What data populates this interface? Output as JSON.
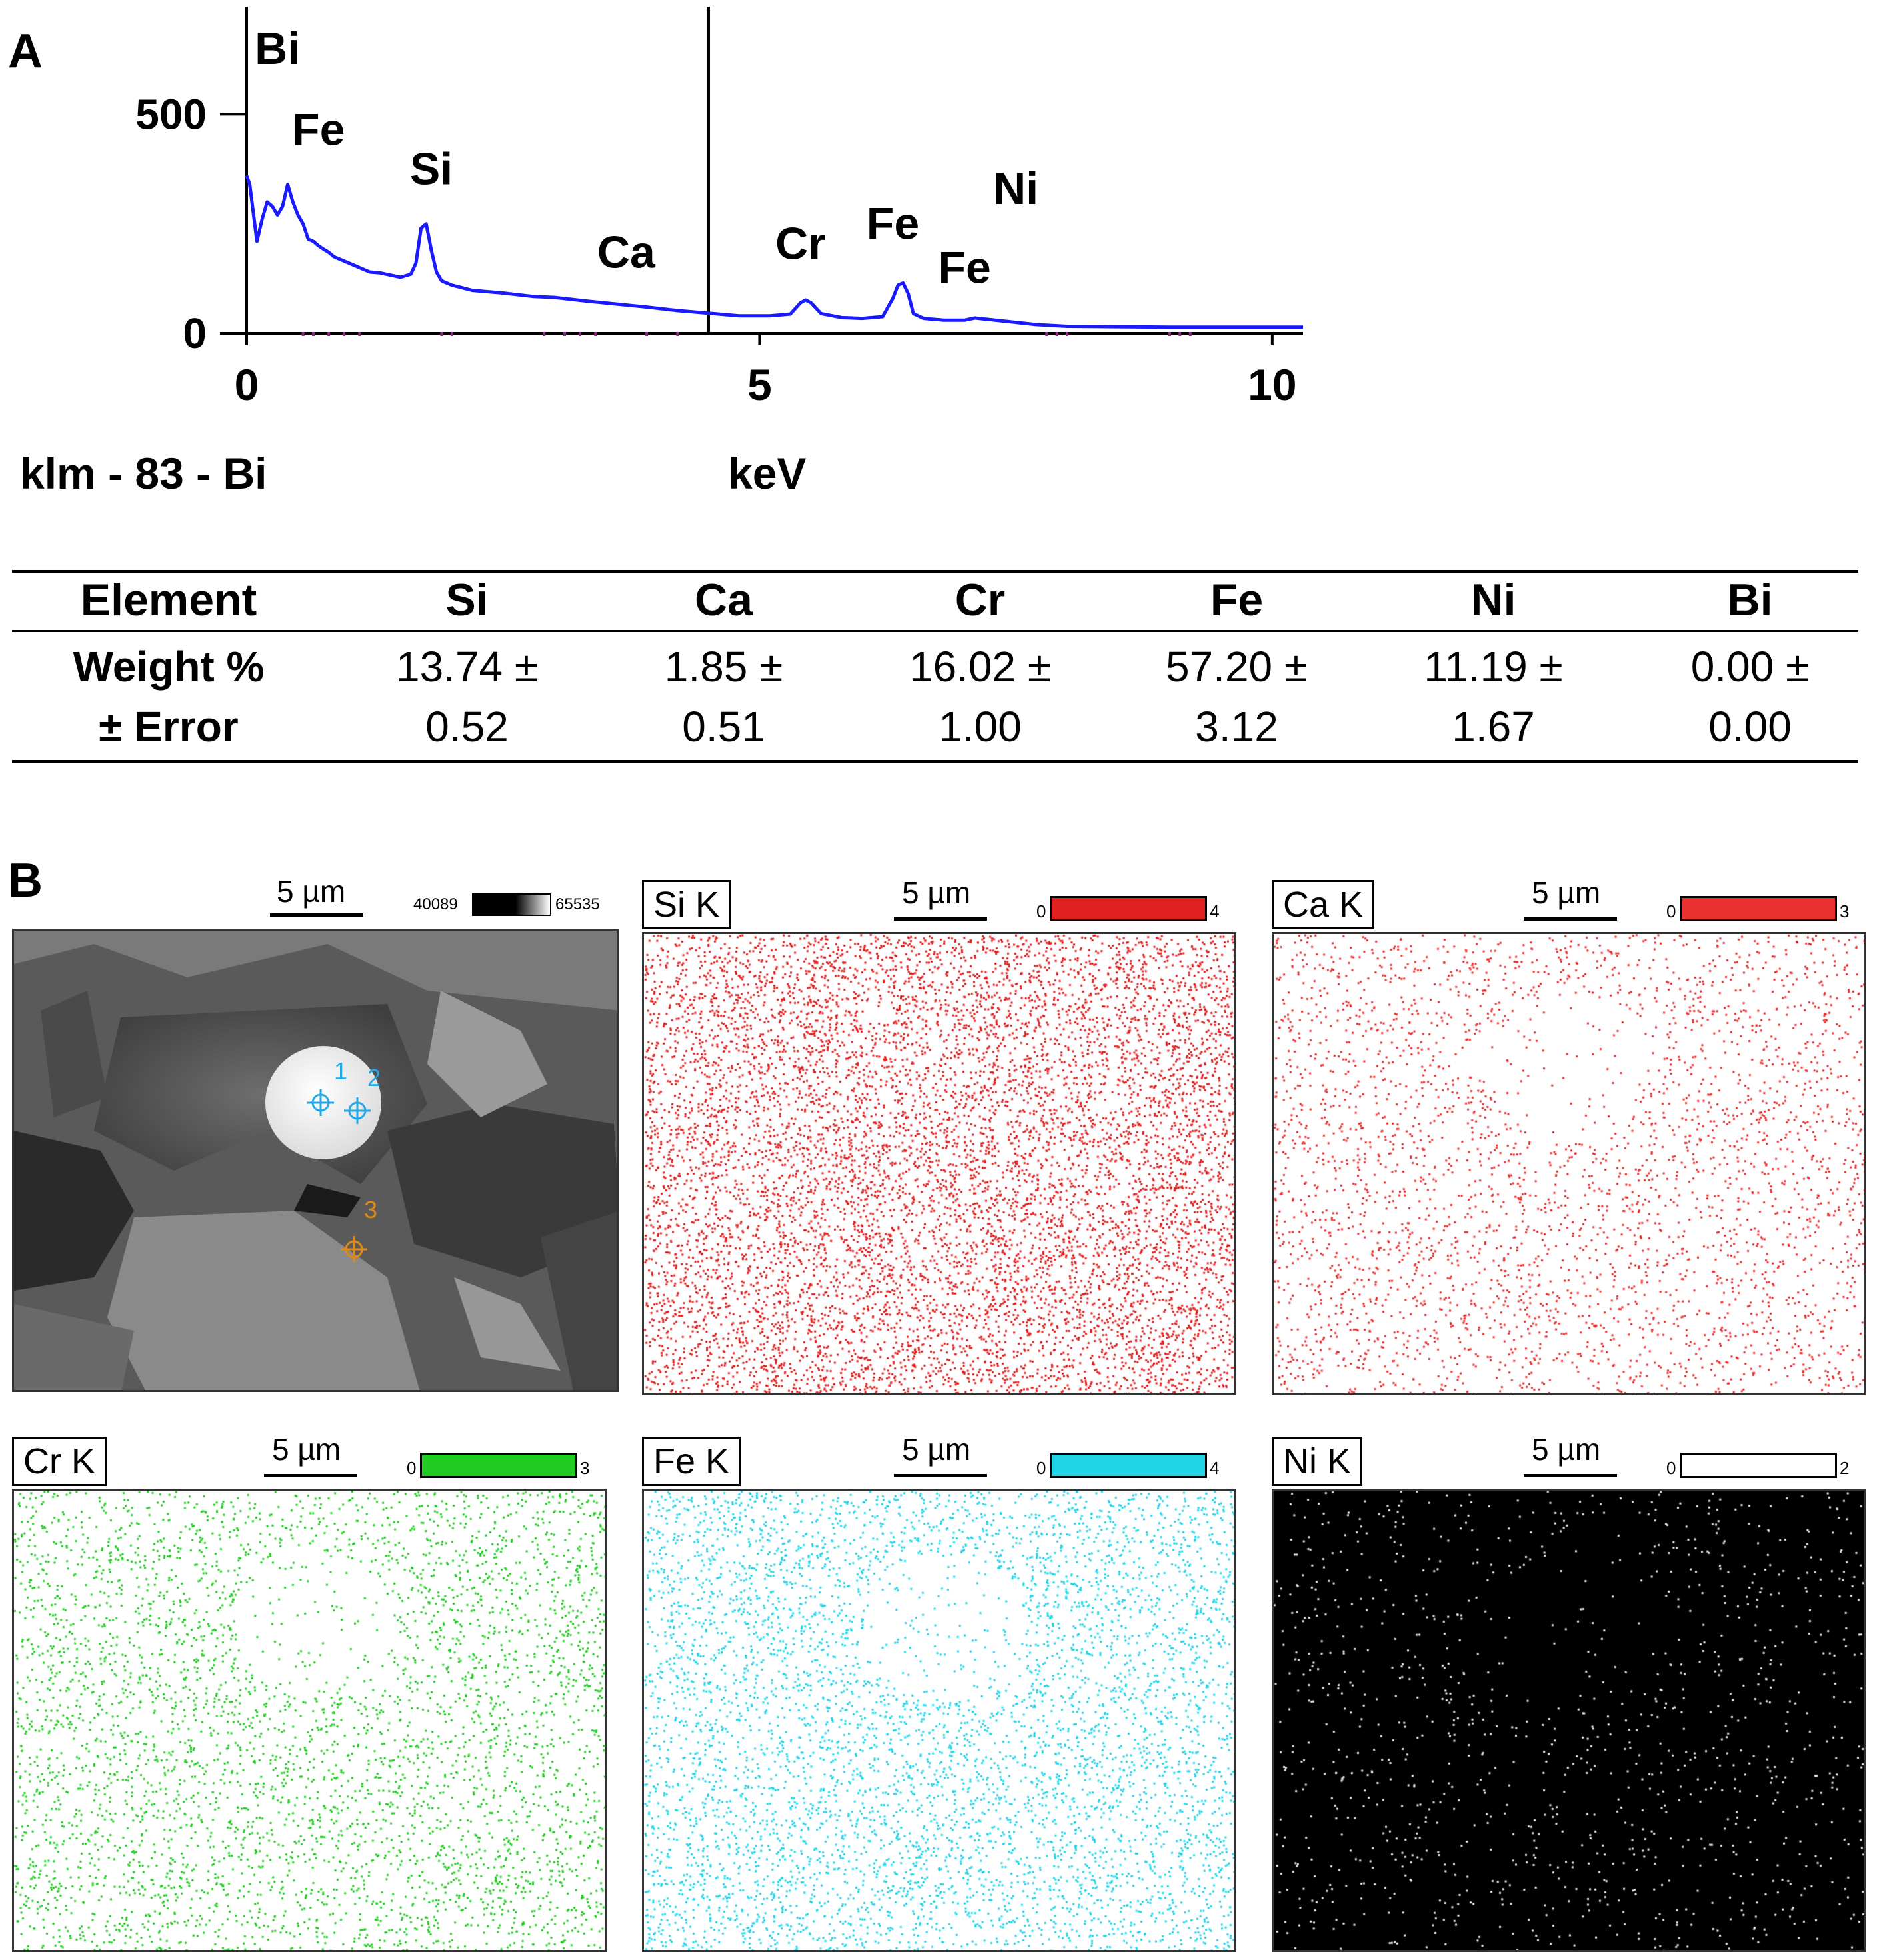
{
  "panel_a": {
    "letter": "A",
    "chart_data": {
      "type": "line",
      "title": "",
      "xlabel": "keV",
      "ylabel": "",
      "sample_label": "klm - 83 - Bi",
      "xlim": [
        0,
        10.3
      ],
      "ylim": [
        0,
        700
      ],
      "x_ticks": [
        "0",
        "5",
        "10"
      ],
      "y_ticks": [
        "0",
        "500"
      ],
      "series": [
        {
          "name": "EDS spectrum",
          "color": "#1a1aff",
          "x": [
            0.0,
            0.03,
            0.1,
            0.15,
            0.2,
            0.25,
            0.3,
            0.35,
            0.4,
            0.45,
            0.5,
            0.55,
            0.6,
            0.65,
            0.7,
            0.75,
            0.8,
            0.85,
            0.9,
            1.0,
            1.1,
            1.2,
            1.3,
            1.4,
            1.5,
            1.6,
            1.65,
            1.7,
            1.75,
            1.8,
            1.85,
            1.9,
            2.0,
            2.2,
            2.5,
            2.8,
            3.0,
            3.3,
            3.6,
            3.9,
            4.2,
            4.5,
            4.8,
            5.1,
            5.3,
            5.4,
            5.45,
            5.5,
            5.6,
            5.8,
            6.0,
            6.2,
            6.3,
            6.35,
            6.4,
            6.45,
            6.5,
            6.6,
            6.8,
            7.0,
            7.1,
            7.3,
            7.5,
            7.7,
            8.0,
            8.5,
            9.0,
            9.5,
            10.0,
            10.3
          ],
          "y": [
            360,
            340,
            210,
            260,
            300,
            290,
            270,
            290,
            340,
            300,
            270,
            250,
            215,
            210,
            200,
            192,
            185,
            175,
            170,
            160,
            150,
            140,
            138,
            133,
            128,
            135,
            160,
            240,
            250,
            190,
            140,
            120,
            110,
            98,
            92,
            84,
            82,
            74,
            67,
            60,
            52,
            46,
            40,
            40,
            44,
            70,
            76,
            70,
            45,
            36,
            34,
            38,
            80,
            110,
            115,
            90,
            45,
            34,
            30,
            30,
            35,
            30,
            25,
            20,
            16,
            15,
            14,
            14,
            14,
            14
          ]
        }
      ],
      "peak_labels": [
        {
          "text": "Cr",
          "x": 0.55,
          "y": 790
        },
        {
          "text": "Bi",
          "x": 0.3,
          "y": 615
        },
        {
          "text": "Fe",
          "x": 0.7,
          "y": 430
        },
        {
          "text": "Si",
          "x": 1.8,
          "y": 340
        },
        {
          "text": "Ca",
          "x": 3.7,
          "y": 150
        },
        {
          "text": "Cr",
          "x": 5.4,
          "y": 170
        },
        {
          "text": "Fe",
          "x": 6.3,
          "y": 215
        },
        {
          "text": "Fe",
          "x": 7.0,
          "y": 115
        },
        {
          "text": "Ni",
          "x": 7.5,
          "y": 295
        }
      ],
      "marker_line_x": 4.5
    }
  },
  "table": {
    "row_header_1": "Element",
    "row_header_2a": "Weight %",
    "row_header_2b": "± Error",
    "elements": [
      "Si",
      "Ca",
      "Cr",
      "Fe",
      "Ni",
      "Bi"
    ],
    "weights": [
      "13.74 ±",
      "1.85 ±",
      "16.02 ±",
      "57.20 ±",
      "11.19 ±",
      "0.00 ±"
    ],
    "errors": [
      "0.52",
      "0.51",
      "1.00",
      "3.12",
      "1.67",
      "0.00"
    ]
  },
  "panel_b": {
    "letter": "B",
    "sem": {
      "scale": "5 µm",
      "cbar_min": "40089",
      "cbar_max": "65535",
      "points": [
        "1",
        "2",
        "3"
      ]
    },
    "maps": [
      {
        "title": "Si K",
        "scale": "5 µm",
        "min": "0",
        "max": "4",
        "color": "#e02020",
        "bg": "#ffffff",
        "density": 9000
      },
      {
        "title": "Ca K",
        "scale": "5 µm",
        "min": "0",
        "max": "3",
        "color": "#e83030",
        "bg": "#ffffff",
        "density": 3500
      },
      {
        "title": "Cr K",
        "scale": "5 µm",
        "min": "0",
        "max": "3",
        "color": "#22cc22",
        "bg": "#ffffff",
        "density": 4500
      },
      {
        "title": "Fe K",
        "scale": "5 µm",
        "min": "0",
        "max": "4",
        "color": "#22d4e8",
        "bg": "#ffffff",
        "density": 6000
      },
      {
        "title": "Ni K",
        "scale": "5 µm",
        "min": "0",
        "max": "2",
        "color": "#e6e6e6",
        "bg": "#000000",
        "density": 1200
      }
    ]
  }
}
